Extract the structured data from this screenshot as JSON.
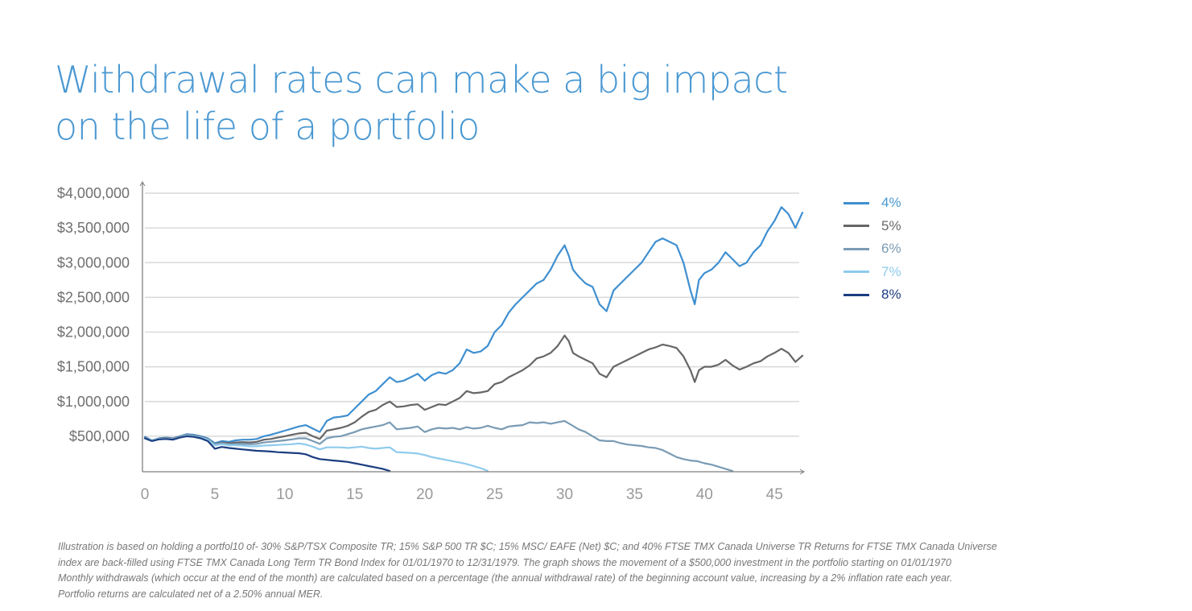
{
  "title": {
    "line1": "Withdrawal rates can make a big impact",
    "line2": "on the life of a portfolio"
  },
  "colors": {
    "title": "#4a98d2",
    "grid": "#d9d9d9",
    "axis": "#7f7f7f"
  },
  "chart_data": {
    "type": "line",
    "title": "Withdrawal rates can make a big impact on the life of a portfolio",
    "xlabel": "",
    "ylabel": "",
    "xlim": [
      0,
      47
    ],
    "ylim": [
      0,
      4000000
    ],
    "grid": true,
    "legend_position": "right",
    "x_ticks": [
      0,
      5,
      10,
      15,
      20,
      25,
      30,
      35,
      40,
      45
    ],
    "x_tick_labels": [
      "0",
      "5",
      "10",
      "15",
      "20",
      "25",
      "30",
      "35",
      "40",
      "45"
    ],
    "y_ticks": [
      500000,
      1000000,
      1500000,
      2000000,
      2500000,
      3000000,
      3500000,
      4000000
    ],
    "y_tick_labels": [
      "$500,000",
      "$1,000,000",
      "$1,500,000",
      "$2,000,000",
      "$2,500,000",
      "$3,000,000",
      "$3,500,000",
      "$4,000,000"
    ],
    "series": [
      {
        "name": "4%",
        "color": "#3f8fd0",
        "x": [
          0,
          0.5,
          1,
          1.5,
          2,
          2.5,
          3,
          3.5,
          4,
          4.5,
          5,
          5.5,
          6,
          6.5,
          7,
          7.5,
          8,
          8.5,
          9,
          9.5,
          10,
          10.5,
          11,
          11.5,
          12,
          12.5,
          13,
          13.5,
          14,
          14.5,
          15,
          15.5,
          16,
          16.5,
          17,
          17.5,
          18,
          18.5,
          19,
          19.5,
          20,
          20.5,
          21,
          21.5,
          22,
          22.5,
          23,
          23.5,
          24,
          24.5,
          25,
          25.5,
          26,
          26.5,
          27,
          27.5,
          28,
          28.5,
          29,
          29.5,
          30,
          30.3,
          30.6,
          31,
          31.5,
          32,
          32.5,
          33,
          33.5,
          34,
          34.5,
          35,
          35.5,
          36,
          36.5,
          37,
          37.5,
          38,
          38.5,
          39,
          39.3,
          39.6,
          40,
          40.5,
          41,
          41.5,
          42,
          42.5,
          43,
          43.5,
          44,
          44.5,
          45,
          45.5,
          46,
          46.5,
          47
        ],
        "values": [
          490000,
          440000,
          470000,
          480000,
          470000,
          500000,
          530000,
          520000,
          500000,
          470000,
          400000,
          430000,
          420000,
          440000,
          450000,
          450000,
          460000,
          500000,
          520000,
          550000,
          580000,
          610000,
          640000,
          660000,
          610000,
          560000,
          720000,
          770000,
          780000,
          800000,
          900000,
          1000000,
          1100000,
          1150000,
          1250000,
          1350000,
          1280000,
          1300000,
          1350000,
          1400000,
          1300000,
          1380000,
          1420000,
          1400000,
          1450000,
          1550000,
          1750000,
          1700000,
          1720000,
          1800000,
          2000000,
          2100000,
          2280000,
          2400000,
          2500000,
          2600000,
          2700000,
          2750000,
          2900000,
          3100000,
          3250000,
          3100000,
          2900000,
          2800000,
          2700000,
          2650000,
          2400000,
          2300000,
          2600000,
          2700000,
          2800000,
          2900000,
          3000000,
          3150000,
          3300000,
          3350000,
          3300000,
          3250000,
          3000000,
          2600000,
          2400000,
          2750000,
          2850000,
          2900000,
          3000000,
          3150000,
          3050000,
          2950000,
          3000000,
          3150000,
          3250000,
          3450000,
          3600000,
          3800000,
          3700000,
          3500000,
          3720000
        ]
      },
      {
        "name": "5%",
        "color": "#666666",
        "x": [
          0,
          0.5,
          1,
          1.5,
          2,
          2.5,
          3,
          3.5,
          4,
          4.5,
          5,
          5.5,
          6,
          6.5,
          7,
          7.5,
          8,
          8.5,
          9,
          9.5,
          10,
          10.5,
          11,
          11.5,
          12,
          12.5,
          13,
          13.5,
          14,
          14.5,
          15,
          15.5,
          16,
          16.5,
          17,
          17.5,
          18,
          18.5,
          19,
          19.5,
          20,
          20.5,
          21,
          21.5,
          22,
          22.5,
          23,
          23.5,
          24,
          24.5,
          25,
          25.5,
          26,
          26.5,
          27,
          27.5,
          28,
          28.5,
          29,
          29.5,
          30,
          30.3,
          30.6,
          31,
          31.5,
          32,
          32.5,
          33,
          33.5,
          34,
          34.5,
          35,
          35.5,
          36,
          36.5,
          37,
          37.5,
          38,
          38.5,
          39,
          39.3,
          39.6,
          40,
          40.5,
          41,
          41.5,
          42,
          42.5,
          43,
          43.5,
          44,
          44.5,
          45,
          45.5,
          46,
          46.5,
          47
        ],
        "values": [
          480000,
          440000,
          465000,
          475000,
          465000,
          495000,
          520000,
          510000,
          490000,
          460000,
          385000,
          410000,
          400000,
          410000,
          415000,
          410000,
          420000,
          450000,
          460000,
          480000,
          500000,
          520000,
          540000,
          550000,
          500000,
          460000,
          580000,
          600000,
          620000,
          650000,
          700000,
          780000,
          850000,
          880000,
          950000,
          1000000,
          920000,
          930000,
          950000,
          960000,
          880000,
          920000,
          960000,
          950000,
          1000000,
          1050000,
          1150000,
          1120000,
          1130000,
          1150000,
          1250000,
          1280000,
          1350000,
          1400000,
          1450000,
          1520000,
          1620000,
          1650000,
          1700000,
          1800000,
          1950000,
          1870000,
          1700000,
          1650000,
          1600000,
          1550000,
          1400000,
          1350000,
          1500000,
          1550000,
          1600000,
          1650000,
          1700000,
          1750000,
          1780000,
          1820000,
          1800000,
          1770000,
          1650000,
          1450000,
          1280000,
          1450000,
          1500000,
          1500000,
          1530000,
          1600000,
          1520000,
          1460000,
          1500000,
          1550000,
          1580000,
          1650000,
          1700000,
          1760000,
          1700000,
          1570000,
          1660000
        ]
      },
      {
        "name": "6%",
        "color": "#7a9bb4",
        "x": [
          0,
          0.5,
          1,
          1.5,
          2,
          2.5,
          3,
          3.5,
          4,
          4.5,
          5,
          5.5,
          6,
          6.5,
          7,
          7.5,
          8,
          8.5,
          9,
          9.5,
          10,
          10.5,
          11,
          11.5,
          12,
          12.5,
          13,
          13.5,
          14,
          14.5,
          15,
          15.5,
          16,
          16.5,
          17,
          17.5,
          18,
          18.5,
          19,
          19.5,
          20,
          20.5,
          21,
          21.5,
          22,
          22.5,
          23,
          23.5,
          24,
          24.5,
          25,
          25.5,
          26,
          26.5,
          27,
          27.5,
          28,
          28.5,
          29,
          29.5,
          30,
          30.5,
          31,
          31.5,
          32,
          32.5,
          33,
          33.5,
          34,
          34.5,
          35,
          35.5,
          36,
          36.5,
          37,
          37.5,
          38,
          38.5,
          39,
          39.5,
          40,
          40.5,
          41,
          41.5,
          42
        ],
        "values": [
          475000,
          440000,
          460000,
          470000,
          460000,
          490000,
          515000,
          505000,
          485000,
          455000,
          380000,
          400000,
          385000,
          390000,
          390000,
          385000,
          390000,
          410000,
          420000,
          430000,
          440000,
          455000,
          470000,
          470000,
          430000,
          390000,
          470000,
          490000,
          500000,
          530000,
          560000,
          600000,
          620000,
          640000,
          660000,
          700000,
          600000,
          610000,
          620000,
          640000,
          560000,
          600000,
          620000,
          610000,
          620000,
          600000,
          630000,
          610000,
          620000,
          650000,
          620000,
          600000,
          640000,
          650000,
          660000,
          700000,
          690000,
          700000,
          680000,
          700000,
          720000,
          660000,
          600000,
          560000,
          500000,
          440000,
          430000,
          430000,
          400000,
          380000,
          370000,
          360000,
          340000,
          330000,
          300000,
          250000,
          200000,
          170000,
          150000,
          140000,
          110000,
          90000,
          60000,
          30000,
          0
        ]
      },
      {
        "name": "7%",
        "color": "#8fcbed",
        "x": [
          0,
          0.5,
          1,
          1.5,
          2,
          2.5,
          3,
          3.5,
          4,
          4.5,
          5,
          5.5,
          6,
          6.5,
          7,
          7.5,
          8,
          8.5,
          9,
          9.5,
          10,
          10.5,
          11,
          11.5,
          12,
          12.5,
          13,
          13.5,
          14,
          14.5,
          15,
          15.5,
          16,
          16.5,
          17,
          17.5,
          18,
          18.5,
          19,
          19.5,
          20,
          20.5,
          21,
          21.5,
          22,
          22.5,
          23,
          23.5,
          24,
          24.5
        ],
        "values": [
          470000,
          440000,
          460000,
          465000,
          455000,
          485000,
          510000,
          500000,
          480000,
          450000,
          370000,
          385000,
          370000,
          370000,
          365000,
          355000,
          355000,
          365000,
          370000,
          375000,
          380000,
          385000,
          395000,
          380000,
          350000,
          310000,
          340000,
          340000,
          340000,
          330000,
          340000,
          350000,
          330000,
          320000,
          330000,
          340000,
          270000,
          265000,
          260000,
          250000,
          230000,
          200000,
          180000,
          160000,
          140000,
          120000,
          100000,
          70000,
          40000,
          0
        ]
      },
      {
        "name": "8%",
        "color": "#1b3d80",
        "x": [
          0,
          0.5,
          1,
          1.5,
          2,
          2.5,
          3,
          3.5,
          4,
          4.5,
          5,
          5.5,
          6,
          6.5,
          7,
          7.5,
          8,
          8.5,
          9,
          9.5,
          10,
          10.5,
          11,
          11.5,
          12,
          12.5,
          13,
          13.5,
          14,
          14.5,
          15,
          15.5,
          16,
          16.5,
          17,
          17.5
        ],
        "values": [
          470000,
          430000,
          455000,
          460000,
          450000,
          480000,
          500000,
          490000,
          470000,
          430000,
          320000,
          345000,
          330000,
          320000,
          310000,
          300000,
          290000,
          285000,
          280000,
          270000,
          265000,
          260000,
          255000,
          240000,
          200000,
          170000,
          160000,
          150000,
          140000,
          130000,
          110000,
          90000,
          70000,
          50000,
          30000,
          0
        ]
      }
    ],
    "footnote": [
      "Illustration is based on holding a portfol10 of- 30% S&P/TSX Composite TR; 15% S&P 500 TR $C; 15% MSC/ EAFE (Net) $C; and 40% FTSE TMX Canada Universe TR Returns for FTSE TMX Canada Universe",
      "index are back-filled using FTSE TMX Canada Long Term TR Bond Index for 01/01/1970 to 12/31/1979. The graph shows the movement of a $500,000 investment in the portfolio starting on 01/01/1970",
      "Monthly withdrawals (which occur at the end of the month) are calculated based on a percentage (the annual withdrawal rate) of the beginning account value, increasing by a 2% inflation rate each year.",
      "Portfolio returns are calculated net of a 2.50% annual MER."
    ]
  },
  "legend": [
    {
      "label": "4%",
      "color": "#3f8fd0",
      "text_color": "#4a98d2"
    },
    {
      "label": "5%",
      "color": "#666666",
      "text_color": "#6a6a6a"
    },
    {
      "label": "6%",
      "color": "#7a9bb4",
      "text_color": "#7a9bb4"
    },
    {
      "label": "7%",
      "color": "#8fcbed",
      "text_color": "#8fcbed"
    },
    {
      "label": "8%",
      "color": "#1b3d80",
      "text_color": "#1b3d80"
    }
  ],
  "footnote": {
    "line1": "Illustration is based on holding a portfol10 of- 30% S&P/TSX Composite TR; 15% S&P 500 TR $C; 15% MSC/ EAFE (Net) $C; and 40% FTSE TMX Canada Universe TR Returns for FTSE TMX Canada Universe",
    "line2": "index are back-filled using FTSE TMX Canada Long Term TR Bond Index for 01/01/1970 to 12/31/1979. The graph shows the movement of a $500,000 investment in the portfolio starting on 01/01/1970",
    "line3": "Monthly withdrawals (which occur at the end of the month) are calculated based on a percentage (the annual withdrawal rate) of the beginning account value, increasing by a 2% inflation rate each year.",
    "line4": "Portfolio returns are calculated net of a 2.50% annual MER."
  }
}
